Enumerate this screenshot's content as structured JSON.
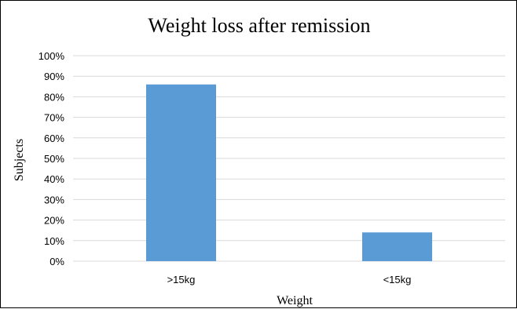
{
  "chart_data": {
    "type": "bar",
    "title": "Weight loss after remission",
    "xlabel": "Weight",
    "ylabel": "Subjects",
    "categories": [
      ">15kg",
      "<15kg"
    ],
    "values": [
      86,
      14
    ],
    "ylim": [
      0,
      100
    ],
    "yticks": [
      0,
      10,
      20,
      30,
      40,
      50,
      60,
      70,
      80,
      90,
      100
    ],
    "ytick_format": "percent",
    "grid": true,
    "legend": "none",
    "bar_color": "#5B9BD5",
    "grid_color": "#D9D9D9"
  }
}
